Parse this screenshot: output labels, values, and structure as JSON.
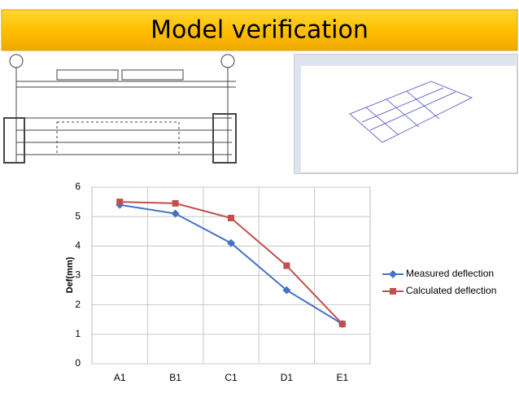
{
  "title": "Model verification",
  "chart_data": {
    "type": "line",
    "y_label": "Def(mm)",
    "categories": [
      "A1",
      "B1",
      "C1",
      "D1",
      "E1"
    ],
    "series": [
      {
        "name": "Measured deflection",
        "color": "#4472c4",
        "marker": "diamond",
        "values": [
          5.4,
          5.1,
          4.1,
          2.5,
          1.35
        ]
      },
      {
        "name": "Calculated deflection",
        "color": "#c0504d",
        "marker": "square",
        "values": [
          5.5,
          5.45,
          4.95,
          3.33,
          1.35
        ]
      }
    ],
    "ylim": [
      0,
      6
    ],
    "yticks": [
      0,
      1,
      2,
      3,
      4,
      5,
      6
    ],
    "grid": true,
    "legend": "right"
  }
}
